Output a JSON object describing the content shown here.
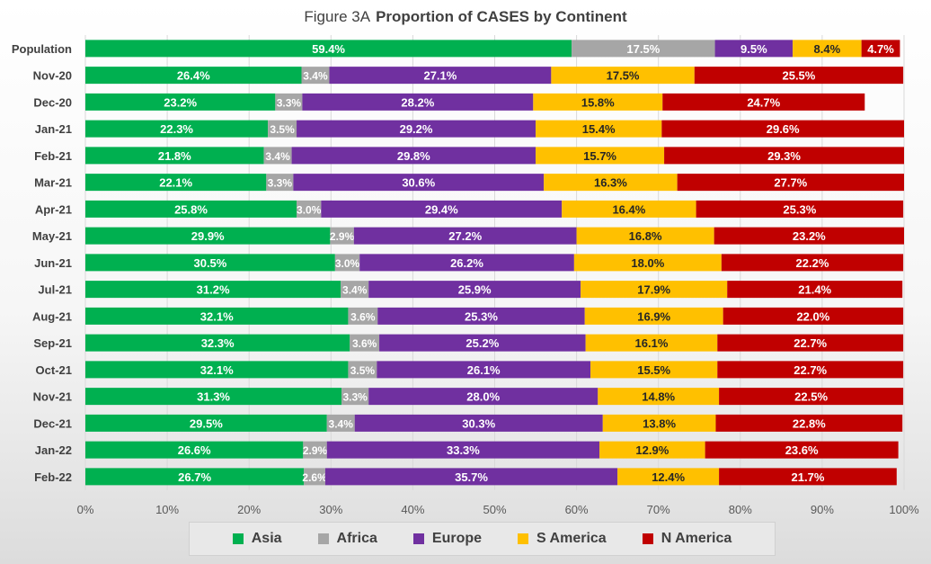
{
  "chart_data": {
    "type": "bar",
    "orientation": "horizontal",
    "stacked": "100%",
    "title_prefix": "Figure  3A",
    "title": "Proportion of CASES by Continent",
    "categories": [
      "Population",
      "Nov-20",
      "Dec-20",
      "Jan-21",
      "Feb-21",
      "Mar-21",
      "Apr-21",
      "May-21",
      "Jun-21",
      "Jul-21",
      "Aug-21",
      "Sep-21",
      "Oct-21",
      "Nov-21",
      "Dec-21",
      "Jan-22",
      "Feb-22"
    ],
    "series": [
      {
        "name": "Asia",
        "color": "#00b050",
        "values": [
          59.4,
          26.4,
          23.2,
          22.3,
          21.8,
          22.1,
          25.8,
          29.9,
          30.5,
          31.2,
          32.1,
          32.3,
          32.1,
          31.3,
          29.5,
          26.6,
          26.7
        ]
      },
      {
        "name": "Africa",
        "color": "#a6a6a6",
        "values": [
          17.5,
          3.4,
          3.3,
          3.5,
          3.4,
          3.3,
          3.0,
          2.9,
          3.0,
          3.4,
          3.6,
          3.6,
          3.5,
          3.3,
          3.4,
          2.9,
          2.6
        ]
      },
      {
        "name": "Europe",
        "color": "#7030a0",
        "values": [
          9.5,
          27.1,
          28.2,
          29.2,
          29.8,
          30.6,
          29.4,
          27.2,
          26.2,
          25.9,
          25.3,
          25.2,
          26.1,
          28.0,
          30.3,
          33.3,
          35.7
        ]
      },
      {
        "name": "S America",
        "color": "#ffc000",
        "values": [
          8.4,
          17.5,
          15.8,
          15.4,
          15.7,
          16.3,
          16.4,
          16.8,
          18.0,
          17.9,
          16.9,
          16.1,
          15.5,
          14.8,
          13.8,
          12.9,
          12.4
        ]
      },
      {
        "name": "N America",
        "color": "#c00000",
        "values": [
          4.7,
          25.5,
          24.7,
          29.6,
          29.3,
          27.7,
          25.3,
          23.2,
          22.2,
          21.4,
          22.0,
          22.7,
          22.7,
          22.5,
          22.8,
          23.6,
          21.7
        ]
      }
    ],
    "xlim": [
      0,
      100
    ],
    "x_ticks": [
      "0%",
      "10%",
      "20%",
      "30%",
      "40%",
      "50%",
      "60%",
      "70%",
      "80%",
      "90%",
      "100%"
    ],
    "grid": true,
    "legend_position": "bottom",
    "data_label_suffix": "%"
  }
}
